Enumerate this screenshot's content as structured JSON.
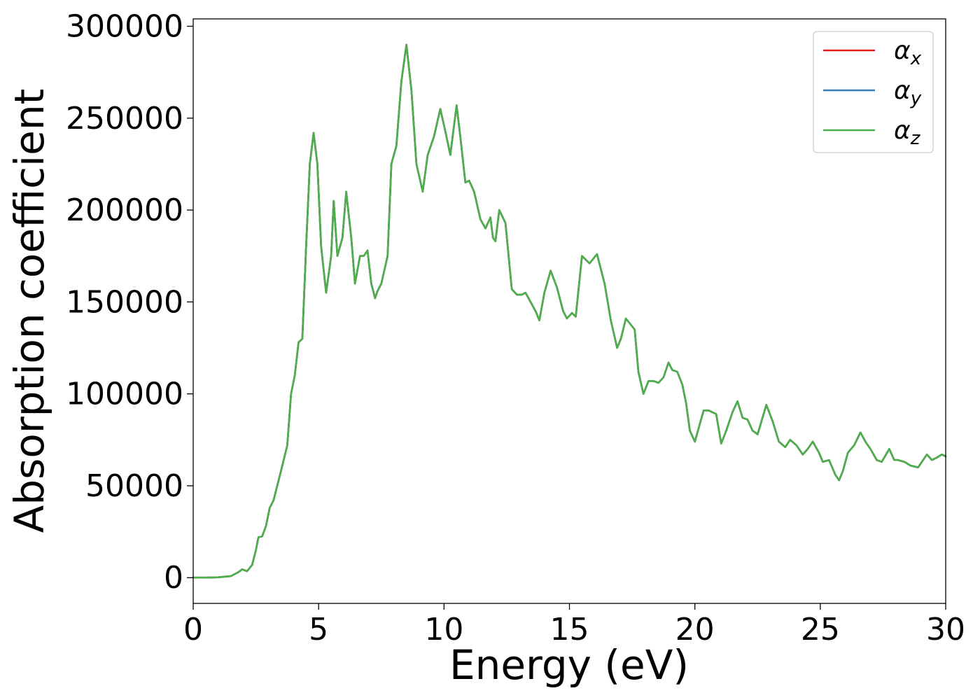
{
  "chart_data": {
    "type": "line",
    "xlabel": "Energy (eV)",
    "ylabel": "Absorption coefficient",
    "xlim": [
      0,
      30
    ],
    "ylim": [
      -14000,
      304000
    ],
    "xticks": [
      0,
      5,
      10,
      15,
      20,
      25,
      30
    ],
    "yticks": [
      0,
      50000,
      100000,
      150000,
      200000,
      250000,
      300000
    ],
    "grid": false,
    "legend_position": "top-right",
    "series": [
      {
        "name": "α",
        "subscript": "x",
        "color": "#e41a1c",
        "x": [
          0,
          0.5,
          1.0,
          1.5,
          1.8,
          1.95,
          2.15,
          2.35,
          2.5,
          2.6,
          2.75,
          2.9,
          3.05,
          3.2,
          3.5,
          3.75,
          3.9,
          4.05,
          4.2,
          4.35,
          4.5,
          4.65,
          4.8,
          4.95,
          5.1,
          5.3,
          5.5,
          5.6,
          5.75,
          5.95,
          6.1,
          6.3,
          6.45,
          6.65,
          6.8,
          6.95,
          7.1,
          7.25,
          7.35,
          7.5,
          7.75,
          7.9,
          8.1,
          8.3,
          8.5,
          8.7,
          8.9,
          9.15,
          9.35,
          9.6,
          9.85,
          10.05,
          10.25,
          10.5,
          10.65,
          10.85,
          11.0,
          11.2,
          11.45,
          11.65,
          11.85,
          11.95,
          12.05,
          12.2,
          12.45,
          12.7,
          12.9,
          13.1,
          13.25,
          13.45,
          13.65,
          13.8,
          14.0,
          14.25,
          14.5,
          14.75,
          14.9,
          15.1,
          15.25,
          15.5,
          15.8,
          16.1,
          16.4,
          16.65,
          16.9,
          17.05,
          17.25,
          17.6,
          17.75,
          17.95,
          18.15,
          18.35,
          18.55,
          18.75,
          18.95,
          19.1,
          19.3,
          19.5,
          19.65,
          19.8,
          20.0,
          20.35,
          20.55,
          20.85,
          21.05,
          21.25,
          21.5,
          21.7,
          21.9,
          22.1,
          22.3,
          22.5,
          22.85,
          23.1,
          23.35,
          23.6,
          23.8,
          24.05,
          24.3,
          24.5,
          24.7,
          24.95,
          25.1,
          25.35,
          25.6,
          25.75,
          25.9,
          26.1,
          26.35,
          26.6,
          26.8,
          27.0,
          27.25,
          27.45,
          27.75,
          27.95,
          28.1,
          28.35,
          28.6,
          28.9,
          29.25,
          29.45,
          29.6,
          29.85,
          30.0
        ],
        "y": [
          0,
          0,
          200,
          800,
          3000,
          4500,
          3500,
          7000,
          15000,
          22000,
          22500,
          28000,
          38000,
          42000,
          58000,
          72000,
          100000,
          110000,
          128000,
          130000,
          180000,
          225000,
          242000,
          225000,
          180000,
          155000,
          175000,
          205000,
          175000,
          185000,
          210000,
          185000,
          160000,
          175000,
          175000,
          178000,
          160000,
          152000,
          156000,
          160000,
          175000,
          225000,
          235000,
          270000,
          290000,
          265000,
          225000,
          210000,
          230000,
          240000,
          255000,
          243000,
          230000,
          257000,
          240000,
          215000,
          216000,
          210000,
          195000,
          190000,
          196000,
          185000,
          183000,
          200000,
          193000,
          157000,
          154000,
          154000,
          155000,
          150000,
          145000,
          140000,
          155000,
          167000,
          158000,
          145000,
          141000,
          144000,
          142000,
          175000,
          171000,
          176000,
          160000,
          140000,
          125000,
          130000,
          141000,
          135000,
          112000,
          100000,
          107000,
          107000,
          106000,
          109000,
          117000,
          113000,
          112000,
          105000,
          95000,
          80000,
          74000,
          91000,
          91000,
          89000,
          73000,
          80000,
          90000,
          96000,
          87000,
          86000,
          80000,
          78000,
          94000,
          85000,
          74000,
          71000,
          75000,
          72000,
          67000,
          70000,
          74000,
          68000,
          63000,
          64000,
          56000,
          53000,
          58000,
          68000,
          72000,
          79000,
          74000,
          70000,
          64000,
          63000,
          70000,
          64000,
          64000,
          63000,
          61000,
          60000,
          67000,
          64000,
          65000,
          67000,
          66000
        ]
      },
      {
        "name": "α",
        "subscript": "y",
        "color": "#377eb8",
        "x": [
          0,
          0.5,
          1.0,
          1.5,
          1.8,
          1.95,
          2.15,
          2.35,
          2.5,
          2.6,
          2.75,
          2.9,
          3.05,
          3.2,
          3.5,
          3.75,
          3.9,
          4.05,
          4.2,
          4.35,
          4.5,
          4.65,
          4.8,
          4.95,
          5.1,
          5.3,
          5.5,
          5.6,
          5.75,
          5.95,
          6.1,
          6.3,
          6.45,
          6.65,
          6.8,
          6.95,
          7.1,
          7.25,
          7.35,
          7.5,
          7.75,
          7.9,
          8.1,
          8.3,
          8.5,
          8.7,
          8.9,
          9.15,
          9.35,
          9.6,
          9.85,
          10.05,
          10.25,
          10.5,
          10.65,
          10.85,
          11.0,
          11.2,
          11.45,
          11.65,
          11.85,
          11.95,
          12.05,
          12.2,
          12.45,
          12.7,
          12.9,
          13.1,
          13.25,
          13.45,
          13.65,
          13.8,
          14.0,
          14.25,
          14.5,
          14.75,
          14.9,
          15.1,
          15.25,
          15.5,
          15.8,
          16.1,
          16.4,
          16.65,
          16.9,
          17.05,
          17.25,
          17.6,
          17.75,
          17.95,
          18.15,
          18.35,
          18.55,
          18.75,
          18.95,
          19.1,
          19.3,
          19.5,
          19.65,
          19.8,
          20.0,
          20.35,
          20.55,
          20.85,
          21.05,
          21.25,
          21.5,
          21.7,
          21.9,
          22.1,
          22.3,
          22.5,
          22.85,
          23.1,
          23.35,
          23.6,
          23.8,
          24.05,
          24.3,
          24.5,
          24.7,
          24.95,
          25.1,
          25.35,
          25.6,
          25.75,
          25.9,
          26.1,
          26.35,
          26.6,
          26.8,
          27.0,
          27.25,
          27.45,
          27.75,
          27.95,
          28.1,
          28.35,
          28.6,
          28.9,
          29.25,
          29.45,
          29.6,
          29.85,
          30.0
        ],
        "y": [
          0,
          0,
          200,
          800,
          3000,
          4500,
          3500,
          7000,
          15000,
          22000,
          22500,
          28000,
          38000,
          42000,
          58000,
          72000,
          100000,
          110000,
          128000,
          130000,
          180000,
          225000,
          242000,
          225000,
          180000,
          155000,
          175000,
          205000,
          175000,
          185000,
          210000,
          185000,
          160000,
          175000,
          175000,
          178000,
          160000,
          152000,
          156000,
          160000,
          175000,
          225000,
          235000,
          270000,
          290000,
          265000,
          225000,
          210000,
          230000,
          240000,
          255000,
          243000,
          230000,
          257000,
          240000,
          215000,
          216000,
          210000,
          195000,
          190000,
          196000,
          185000,
          183000,
          200000,
          193000,
          157000,
          154000,
          154000,
          155000,
          150000,
          145000,
          140000,
          155000,
          167000,
          158000,
          145000,
          141000,
          144000,
          142000,
          175000,
          171000,
          176000,
          160000,
          140000,
          125000,
          130000,
          141000,
          135000,
          112000,
          100000,
          107000,
          107000,
          106000,
          109000,
          117000,
          113000,
          112000,
          105000,
          95000,
          80000,
          74000,
          91000,
          91000,
          89000,
          73000,
          80000,
          90000,
          96000,
          87000,
          86000,
          80000,
          78000,
          94000,
          85000,
          74000,
          71000,
          75000,
          72000,
          67000,
          70000,
          74000,
          68000,
          63000,
          64000,
          56000,
          53000,
          58000,
          68000,
          72000,
          79000,
          74000,
          70000,
          64000,
          63000,
          70000,
          64000,
          64000,
          63000,
          61000,
          60000,
          67000,
          64000,
          65000,
          67000,
          66000
        ]
      },
      {
        "name": "α",
        "subscript": "z",
        "color": "#4daf4a",
        "x": [
          0,
          0.5,
          1.0,
          1.5,
          1.8,
          1.95,
          2.15,
          2.35,
          2.5,
          2.6,
          2.75,
          2.9,
          3.05,
          3.2,
          3.5,
          3.75,
          3.9,
          4.05,
          4.2,
          4.35,
          4.5,
          4.65,
          4.8,
          4.95,
          5.1,
          5.3,
          5.5,
          5.6,
          5.75,
          5.95,
          6.1,
          6.3,
          6.45,
          6.65,
          6.8,
          6.95,
          7.1,
          7.25,
          7.35,
          7.5,
          7.75,
          7.9,
          8.1,
          8.3,
          8.5,
          8.7,
          8.9,
          9.15,
          9.35,
          9.6,
          9.85,
          10.05,
          10.25,
          10.5,
          10.65,
          10.85,
          11.0,
          11.2,
          11.45,
          11.65,
          11.85,
          11.95,
          12.05,
          12.2,
          12.45,
          12.7,
          12.9,
          13.1,
          13.25,
          13.45,
          13.65,
          13.8,
          14.0,
          14.25,
          14.5,
          14.75,
          14.9,
          15.1,
          15.25,
          15.5,
          15.8,
          16.1,
          16.4,
          16.65,
          16.9,
          17.05,
          17.25,
          17.6,
          17.75,
          17.95,
          18.15,
          18.35,
          18.55,
          18.75,
          18.95,
          19.1,
          19.3,
          19.5,
          19.65,
          19.8,
          20.0,
          20.35,
          20.55,
          20.85,
          21.05,
          21.25,
          21.5,
          21.7,
          21.9,
          22.1,
          22.3,
          22.5,
          22.85,
          23.1,
          23.35,
          23.6,
          23.8,
          24.05,
          24.3,
          24.5,
          24.7,
          24.95,
          25.1,
          25.35,
          25.6,
          25.75,
          25.9,
          26.1,
          26.35,
          26.6,
          26.8,
          27.0,
          27.25,
          27.45,
          27.75,
          27.95,
          28.1,
          28.35,
          28.6,
          28.9,
          29.25,
          29.45,
          29.6,
          29.85,
          30.0
        ],
        "y": [
          0,
          0,
          200,
          800,
          3000,
          4500,
          3500,
          7000,
          15000,
          22000,
          22500,
          28000,
          38000,
          42000,
          58000,
          72000,
          100000,
          110000,
          128000,
          130000,
          180000,
          225000,
          242000,
          225000,
          180000,
          155000,
          175000,
          205000,
          175000,
          185000,
          210000,
          185000,
          160000,
          175000,
          175000,
          178000,
          160000,
          152000,
          156000,
          160000,
          175000,
          225000,
          235000,
          270000,
          290000,
          265000,
          225000,
          210000,
          230000,
          240000,
          255000,
          243000,
          230000,
          257000,
          240000,
          215000,
          216000,
          210000,
          195000,
          190000,
          196000,
          185000,
          183000,
          200000,
          193000,
          157000,
          154000,
          154000,
          155000,
          150000,
          145000,
          140000,
          155000,
          167000,
          158000,
          145000,
          141000,
          144000,
          142000,
          175000,
          171000,
          176000,
          160000,
          140000,
          125000,
          130000,
          141000,
          135000,
          112000,
          100000,
          107000,
          107000,
          106000,
          109000,
          117000,
          113000,
          112000,
          105000,
          95000,
          80000,
          74000,
          91000,
          91000,
          89000,
          73000,
          80000,
          90000,
          96000,
          87000,
          86000,
          80000,
          78000,
          94000,
          85000,
          74000,
          71000,
          75000,
          72000,
          67000,
          70000,
          74000,
          68000,
          63000,
          64000,
          56000,
          53000,
          58000,
          68000,
          72000,
          79000,
          74000,
          70000,
          64000,
          63000,
          70000,
          64000,
          64000,
          63000,
          61000,
          60000,
          67000,
          64000,
          65000,
          67000,
          66000
        ]
      }
    ]
  }
}
